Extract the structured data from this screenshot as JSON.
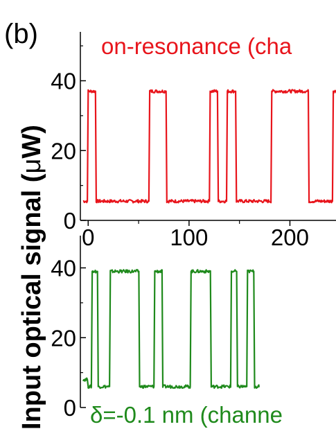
{
  "panel_label": "(b)",
  "ylabel_prefix": "Input optical signal (",
  "ylabel_mu": "μ",
  "ylabel_suffix": "W)",
  "chart_data": [
    {
      "type": "line",
      "annotation": "on-resonance (cha",
      "color": "#e8141b",
      "xlim": [
        -5,
        256
      ],
      "ylim": [
        0,
        54
      ],
      "yticks": [
        0,
        20,
        40
      ],
      "xticks": [
        0,
        100,
        200
      ],
      "series": [
        {
          "low": 5.5,
          "high": 37,
          "high_intervals": [
            [
              0,
              8
            ],
            [
              61,
              78
            ],
            [
              121,
              129
            ],
            [
              138,
              147
            ],
            [
              182,
              219
            ],
            [
              243,
              256
            ]
          ],
          "x": [
            -5,
            0,
            8,
            61,
            78,
            121,
            129,
            138,
            147,
            182,
            219,
            243,
            256
          ],
          "y": [
            5.5,
            37,
            5.5,
            37,
            5.5,
            37,
            5.5,
            37,
            5.5,
            37,
            5.5,
            37,
            37
          ]
        }
      ]
    },
    {
      "type": "line",
      "annotation": "δ=-0.1 nm (channe",
      "color": "#1f8a1c",
      "xlim": [
        -5,
        256
      ],
      "ylim": [
        0,
        54
      ],
      "yticks": [
        0,
        20,
        40
      ],
      "xticks": [],
      "series": [
        {
          "low": 6,
          "high": 39,
          "high_intervals": [
            [
              4,
              10
            ],
            [
              22,
              51
            ],
            [
              66,
              74
            ],
            [
              102,
              122
            ],
            [
              142,
              148
            ],
            [
              158,
              165
            ]
          ],
          "x": [
            -5,
            0,
            4,
            10,
            22,
            51,
            66,
            74,
            102,
            122,
            142,
            148,
            158,
            165,
            170
          ],
          "y": [
            8,
            6,
            39,
            6,
            39,
            6,
            39,
            6,
            39,
            6,
            39,
            6,
            39,
            6,
            6
          ]
        }
      ]
    }
  ]
}
